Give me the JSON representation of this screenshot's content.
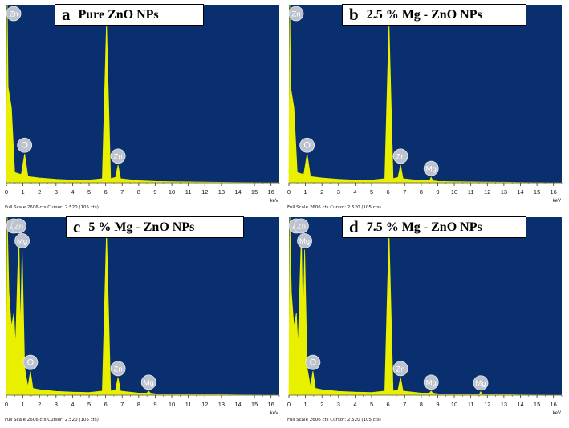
{
  "panels": [
    {
      "letter": "a",
      "title": "Pure ZnO NPs",
      "footer": "Full Scale 2606 cts Cursor: 2.520  (105 cts)",
      "x_unit": "keV",
      "peak_labels": [
        {
          "text": "Zn",
          "x": 0.05,
          "y": 2606
        },
        {
          "text": "O",
          "x": 1.1,
          "y": 420
        },
        {
          "text": "Zn",
          "x": 6.05,
          "y": 2350
        },
        {
          "text": "Zn",
          "x": 6.75,
          "y": 260
        }
      ]
    },
    {
      "letter": "b",
      "title": "2.5 % Mg - ZnO NPs",
      "footer": "Full Scale 2606 cts Cursor: 2.520  (105 cts)",
      "x_unit": "keV",
      "peak_labels": [
        {
          "text": "Zn",
          "x": 0.05,
          "y": 2606
        },
        {
          "text": "O",
          "x": 1.1,
          "y": 420
        },
        {
          "text": "Zn",
          "x": 6.05,
          "y": 2350
        },
        {
          "text": "Zn",
          "x": 6.75,
          "y": 260
        },
        {
          "text": "Mg",
          "x": 8.6,
          "y": 80
        }
      ]
    },
    {
      "letter": "c",
      "title": "5 % Mg - ZnO NPs",
      "footer": "Full Scale 2606 cts Cursor: 2.520  (105 cts)",
      "x_unit": "keV",
      "peak_labels": [
        {
          "text": "Zn",
          "x": 0.05,
          "y": 2606
        },
        {
          "text": "Zn",
          "x": 0.75,
          "y": 2350
        },
        {
          "text": "Mg",
          "x": 0.95,
          "y": 2130
        },
        {
          "text": "O",
          "x": 1.45,
          "y": 350
        },
        {
          "text": "Zn",
          "x": 6.05,
          "y": 2400
        },
        {
          "text": "Zn",
          "x": 6.75,
          "y": 260
        },
        {
          "text": "Mg",
          "x": 8.6,
          "y": 60
        }
      ]
    },
    {
      "letter": "d",
      "title": "7.5 % Mg - ZnO NPs",
      "footer": "Full Scale 2606 cts Cursor: 2.520  (105 cts)",
      "x_unit": "keV",
      "peak_labels": [
        {
          "text": "Zn",
          "x": 0.05,
          "y": 2606
        },
        {
          "text": "Zn",
          "x": 0.75,
          "y": 2350
        },
        {
          "text": "Mg",
          "x": 0.95,
          "y": 2130
        },
        {
          "text": "O",
          "x": 1.45,
          "y": 350
        },
        {
          "text": "Zn",
          "x": 6.05,
          "y": 2400
        },
        {
          "text": "Zn",
          "x": 6.75,
          "y": 260
        },
        {
          "text": "Mg",
          "x": 8.6,
          "y": 60
        },
        {
          "text": "Mg",
          "x": 11.6,
          "y": 50
        }
      ]
    }
  ],
  "chart_data": [
    {
      "type": "line",
      "title": "Pure ZnO NPs",
      "xlabel": "keV",
      "ylabel": "",
      "xlim": [
        0,
        16.5
      ],
      "ylim": [
        0,
        2606
      ],
      "x_ticks": [
        0,
        1,
        2,
        3,
        4,
        5,
        6,
        7,
        8,
        9,
        10,
        11,
        12,
        13,
        14,
        15,
        16
      ],
      "series": [
        {
          "values": [
            [
              0,
              0
            ],
            [
              0.05,
              2606
            ],
            [
              0.1,
              1400
            ],
            [
              0.3,
              1100
            ],
            [
              0.5,
              150
            ],
            [
              0.9,
              120
            ],
            [
              1.1,
              420
            ],
            [
              1.3,
              90
            ],
            [
              2,
              70
            ],
            [
              3,
              50
            ],
            [
              4,
              40
            ],
            [
              5,
              40
            ],
            [
              5.8,
              60
            ],
            [
              6.05,
              2350
            ],
            [
              6.3,
              60
            ],
            [
              6.6,
              80
            ],
            [
              6.75,
              260
            ],
            [
              6.9,
              60
            ],
            [
              8,
              30
            ],
            [
              9,
              20
            ],
            [
              10,
              15
            ],
            [
              12,
              10
            ],
            [
              14,
              5
            ],
            [
              16.5,
              0
            ]
          ]
        }
      ],
      "color": "#e8f000",
      "background": "#0a2f6e"
    },
    {
      "type": "line",
      "title": "2.5 % Mg - ZnO NPs",
      "xlabel": "keV",
      "ylabel": "",
      "xlim": [
        0,
        16.5
      ],
      "ylim": [
        0,
        2606
      ],
      "x_ticks": [
        0,
        1,
        2,
        3,
        4,
        5,
        6,
        7,
        8,
        9,
        10,
        11,
        12,
        13,
        14,
        15,
        16
      ],
      "series": [
        {
          "values": [
            [
              0,
              0
            ],
            [
              0.05,
              2606
            ],
            [
              0.1,
              1400
            ],
            [
              0.3,
              1100
            ],
            [
              0.5,
              150
            ],
            [
              0.9,
              120
            ],
            [
              1.1,
              420
            ],
            [
              1.3,
              90
            ],
            [
              2,
              70
            ],
            [
              3,
              50
            ],
            [
              4,
              40
            ],
            [
              5,
              40
            ],
            [
              5.8,
              60
            ],
            [
              6.05,
              2350
            ],
            [
              6.3,
              60
            ],
            [
              6.6,
              80
            ],
            [
              6.75,
              260
            ],
            [
              6.9,
              60
            ],
            [
              8,
              30
            ],
            [
              8.5,
              30
            ],
            [
              8.6,
              80
            ],
            [
              8.7,
              30
            ],
            [
              9,
              20
            ],
            [
              10,
              15
            ],
            [
              12,
              10
            ],
            [
              14,
              5
            ],
            [
              16.5,
              0
            ]
          ]
        }
      ],
      "color": "#e8f000",
      "background": "#0a2f6e"
    },
    {
      "type": "line",
      "title": "5 % Mg - ZnO NPs",
      "xlabel": "keV",
      "ylabel": "",
      "xlim": [
        0,
        16.5
      ],
      "ylim": [
        0,
        2606
      ],
      "x_ticks": [
        0,
        1,
        2,
        3,
        4,
        5,
        6,
        7,
        8,
        9,
        10,
        11,
        12,
        13,
        14,
        15,
        16
      ],
      "series": [
        {
          "values": [
            [
              0,
              0
            ],
            [
              0.05,
              2606
            ],
            [
              0.15,
              1500
            ],
            [
              0.3,
              1000
            ],
            [
              0.45,
              1200
            ],
            [
              0.55,
              700
            ],
            [
              0.75,
              2350
            ],
            [
              0.85,
              900
            ],
            [
              0.95,
              2130
            ],
            [
              1.1,
              400
            ],
            [
              1.3,
              120
            ],
            [
              1.45,
              350
            ],
            [
              1.6,
              100
            ],
            [
              2,
              80
            ],
            [
              3,
              55
            ],
            [
              4,
              45
            ],
            [
              5,
              40
            ],
            [
              5.8,
              60
            ],
            [
              6.05,
              2400
            ],
            [
              6.3,
              60
            ],
            [
              6.6,
              80
            ],
            [
              6.75,
              260
            ],
            [
              6.9,
              60
            ],
            [
              8,
              30
            ],
            [
              8.5,
              30
            ],
            [
              8.6,
              60
            ],
            [
              8.7,
              30
            ],
            [
              9,
              20
            ],
            [
              10,
              15
            ],
            [
              12,
              10
            ],
            [
              14,
              5
            ],
            [
              16.5,
              0
            ]
          ]
        }
      ],
      "color": "#e8f000",
      "background": "#0a2f6e"
    },
    {
      "type": "line",
      "title": "7.5 % Mg - ZnO NPs",
      "xlabel": "keV",
      "ylabel": "",
      "xlim": [
        0,
        16.5
      ],
      "ylim": [
        0,
        2606
      ],
      "x_ticks": [
        0,
        1,
        2,
        3,
        4,
        5,
        6,
        7,
        8,
        9,
        10,
        11,
        12,
        13,
        14,
        15,
        16
      ],
      "series": [
        {
          "values": [
            [
              0,
              0
            ],
            [
              0.05,
              2606
            ],
            [
              0.15,
              1500
            ],
            [
              0.3,
              1000
            ],
            [
              0.45,
              1200
            ],
            [
              0.55,
              700
            ],
            [
              0.75,
              2350
            ],
            [
              0.85,
              900
            ],
            [
              0.95,
              2130
            ],
            [
              1.1,
              400
            ],
            [
              1.3,
              120
            ],
            [
              1.45,
              350
            ],
            [
              1.6,
              100
            ],
            [
              2,
              80
            ],
            [
              3,
              55
            ],
            [
              4,
              45
            ],
            [
              5,
              40
            ],
            [
              5.8,
              60
            ],
            [
              6.05,
              2400
            ],
            [
              6.3,
              60
            ],
            [
              6.6,
              80
            ],
            [
              6.75,
              260
            ],
            [
              6.9,
              60
            ],
            [
              8,
              30
            ],
            [
              8.5,
              30
            ],
            [
              8.6,
              60
            ],
            [
              8.7,
              30
            ],
            [
              9,
              20
            ],
            [
              10,
              15
            ],
            [
              11.5,
              12
            ],
            [
              11.6,
              50
            ],
            [
              11.7,
              12
            ],
            [
              12,
              10
            ],
            [
              14,
              5
            ],
            [
              16.5,
              0
            ]
          ]
        }
      ],
      "color": "#e8f000",
      "background": "#0a2f6e"
    }
  ]
}
